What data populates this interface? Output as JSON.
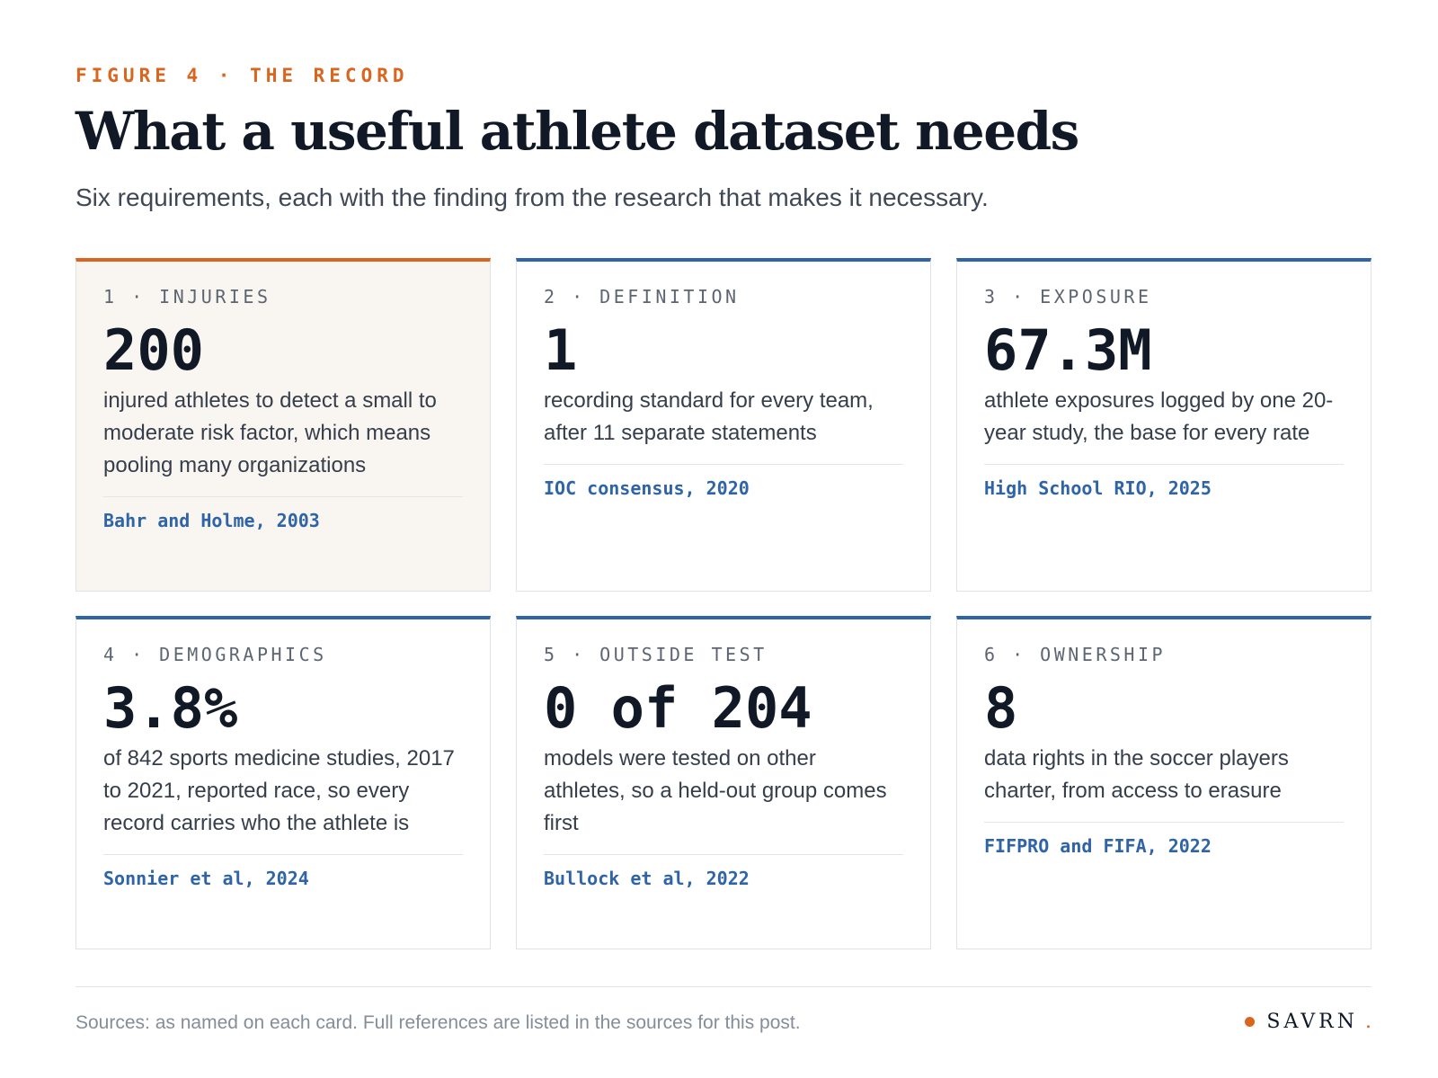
{
  "header": {
    "eyebrow": "FIGURE 4 · THE RECORD",
    "title": "What a useful athlete dataset needs",
    "subtitle": "Six requirements, each with the finding from the research that makes it necessary."
  },
  "cards": [
    {
      "label": "1 · INJURIES",
      "value": "200",
      "description": "injured athletes to detect a small to moderate risk factor, which means pooling many organizations",
      "source": "Bahr and Holme, 2003",
      "highlight": true
    },
    {
      "label": "2 · DEFINITION",
      "value": "1",
      "description": "recording standard for every team, after 11 separate statements",
      "source": "IOC consensus, 2020",
      "highlight": false
    },
    {
      "label": "3 · EXPOSURE",
      "value": "67.3M",
      "description": "athlete exposures logged by one 20-year study, the base for every rate",
      "source": "High School RIO, 2025",
      "highlight": false
    },
    {
      "label": "4 · DEMOGRAPHICS",
      "value": "3.8%",
      "description": "of 842 sports medicine studies, 2017 to 2021, reported race, so every record carries who the athlete is",
      "source": "Sonnier et al, 2024",
      "highlight": false
    },
    {
      "label": "5 · OUTSIDE TEST",
      "value": "0 of 204",
      "description": "models were tested on other athletes, so a held-out group comes first",
      "source": "Bullock et al, 2022",
      "highlight": false
    },
    {
      "label": "6 · OWNERSHIP",
      "value": "8",
      "description": "data rights in the soccer players charter, from access to erasure",
      "source": "FIFPRO and FIFA, 2022",
      "highlight": false
    }
  ],
  "footer": {
    "sources_note": "Sources: as named on each card. Full references are listed in the sources for this post.",
    "brand": "SAVRN",
    "brand_period": "."
  },
  "colors": {
    "accent_orange": "#d9651f",
    "accent_blue": "#2f64a6",
    "highlight_background": "#f9f6f1"
  }
}
